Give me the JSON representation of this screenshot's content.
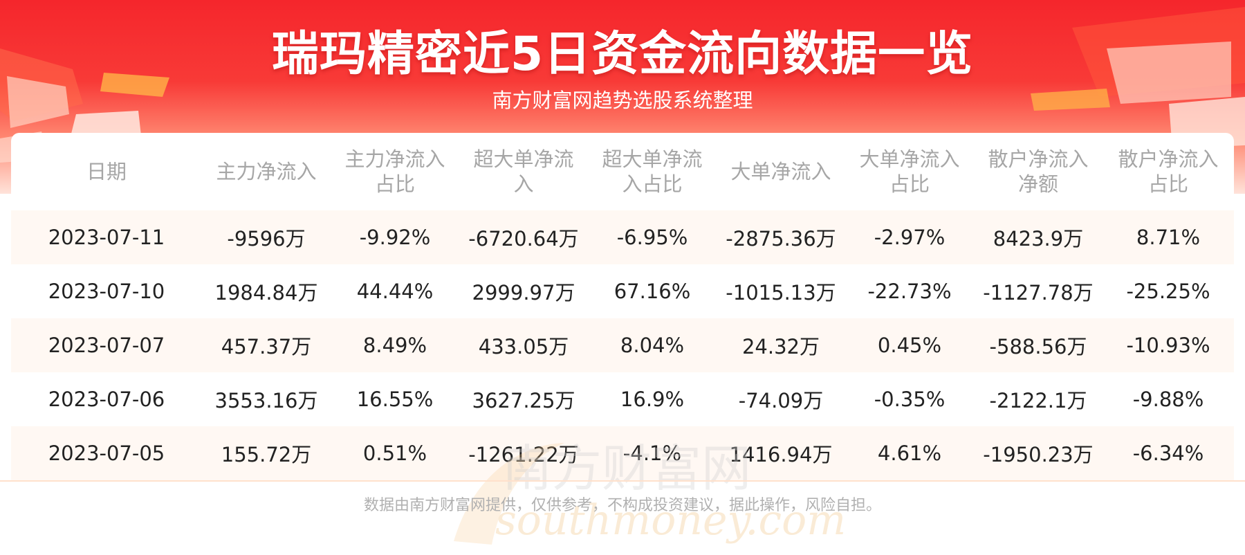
{
  "header": {
    "title": "瑞玛精密近5日资金流向数据一览",
    "subtitle": "南方财富网趋势选股系统整理"
  },
  "chart_data": {
    "type": "table",
    "columns": [
      "日期",
      "主力净流入",
      "主力净流入占比",
      "超大单净流入",
      "超大单净流入占比",
      "大单净流入",
      "大单净流入占比",
      "散户净流入净额",
      "散户净流入占比"
    ],
    "rows": [
      [
        "2023-07-11",
        "-9596万",
        "-9.92%",
        "-6720.64万",
        "-6.95%",
        "-2875.36万",
        "-2.97%",
        "8423.9万",
        "8.71%"
      ],
      [
        "2023-07-10",
        "1984.84万",
        "44.44%",
        "2999.97万",
        "67.16%",
        "-1015.13万",
        "-22.73%",
        "-1127.78万",
        "-25.25%"
      ],
      [
        "2023-07-07",
        "457.37万",
        "8.49%",
        "433.05万",
        "8.04%",
        "24.32万",
        "0.45%",
        "-588.56万",
        "-10.93%"
      ],
      [
        "2023-07-06",
        "3553.16万",
        "16.55%",
        "3627.25万",
        "16.9%",
        "-74.09万",
        "-0.35%",
        "-2122.1万",
        "-9.88%"
      ],
      [
        "2023-07-05",
        "155.72万",
        "0.51%",
        "-1261.22万",
        "-4.1%",
        "1416.94万",
        "4.61%",
        "-1950.23万",
        "-6.34%"
      ]
    ]
  },
  "watermark": {
    "chinese": "南方财富网",
    "latin": "southmoney.com"
  },
  "footer": {
    "disclaimer": "数据由南方财富网提供，仅供参考，不构成投资建议，据此操作，风险自担。"
  },
  "colors": {
    "banner_red": "#f5262c",
    "row_stripe": "#fff8f3",
    "header_text": "#a6a6a6",
    "body_text": "#222222"
  }
}
